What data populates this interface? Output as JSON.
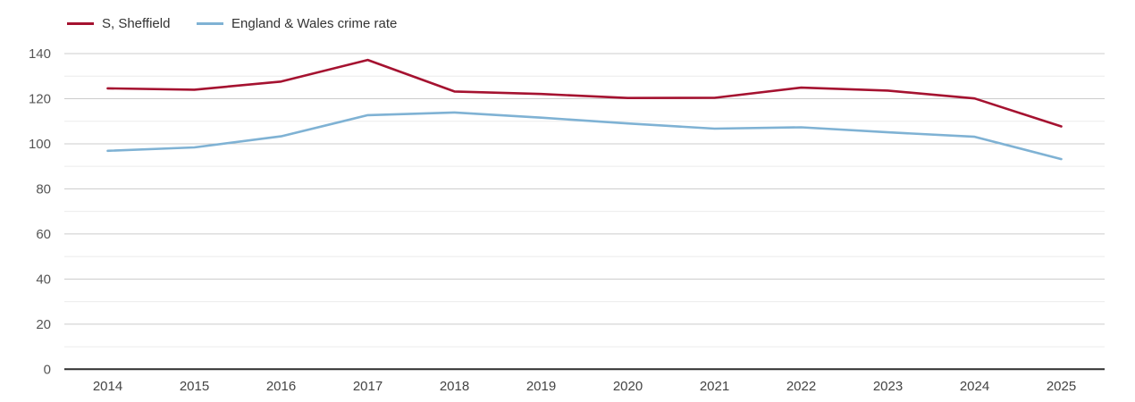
{
  "legend": {
    "items": [
      {
        "label": "S, Sheffield",
        "color": "#a51230"
      },
      {
        "label": "England & Wales crime rate",
        "color": "#7fb2d4"
      }
    ]
  },
  "chart_data": {
    "type": "line",
    "title": "",
    "xlabel": "",
    "ylabel": "",
    "categories": [
      "2014",
      "2015",
      "2016",
      "2017",
      "2018",
      "2019",
      "2020",
      "2021",
      "2022",
      "2023",
      "2024",
      "2025"
    ],
    "series": [
      {
        "name": "S, Sheffield",
        "color": "#a51230",
        "values": [
          124.6,
          124.0,
          127.6,
          137.2,
          123.2,
          122.1,
          120.3,
          120.4,
          124.9,
          123.6,
          120.1,
          107.7
        ]
      },
      {
        "name": "England & Wales crime rate",
        "color": "#7fb2d4",
        "values": [
          96.9,
          98.4,
          103.3,
          112.7,
          113.9,
          111.6,
          109.0,
          106.7,
          107.3,
          105.1,
          103.1,
          93.2
        ]
      }
    ],
    "ylim": [
      0,
      140
    ],
    "y_tick_step": 20,
    "y_minor_grid_step": 10,
    "y_tick_labels": [
      "0",
      "20",
      "40",
      "60",
      "80",
      "100",
      "120",
      "140"
    ],
    "grid": "on",
    "legend_position": "top-left",
    "colors": {
      "major_gridline": "#cccccc",
      "minor_gridline": "#ebebeb",
      "zero_axis_line": "#2e2e2e",
      "y_tick_text": "#555555",
      "x_tick_text": "#444444",
      "background": "#ffffff"
    }
  }
}
